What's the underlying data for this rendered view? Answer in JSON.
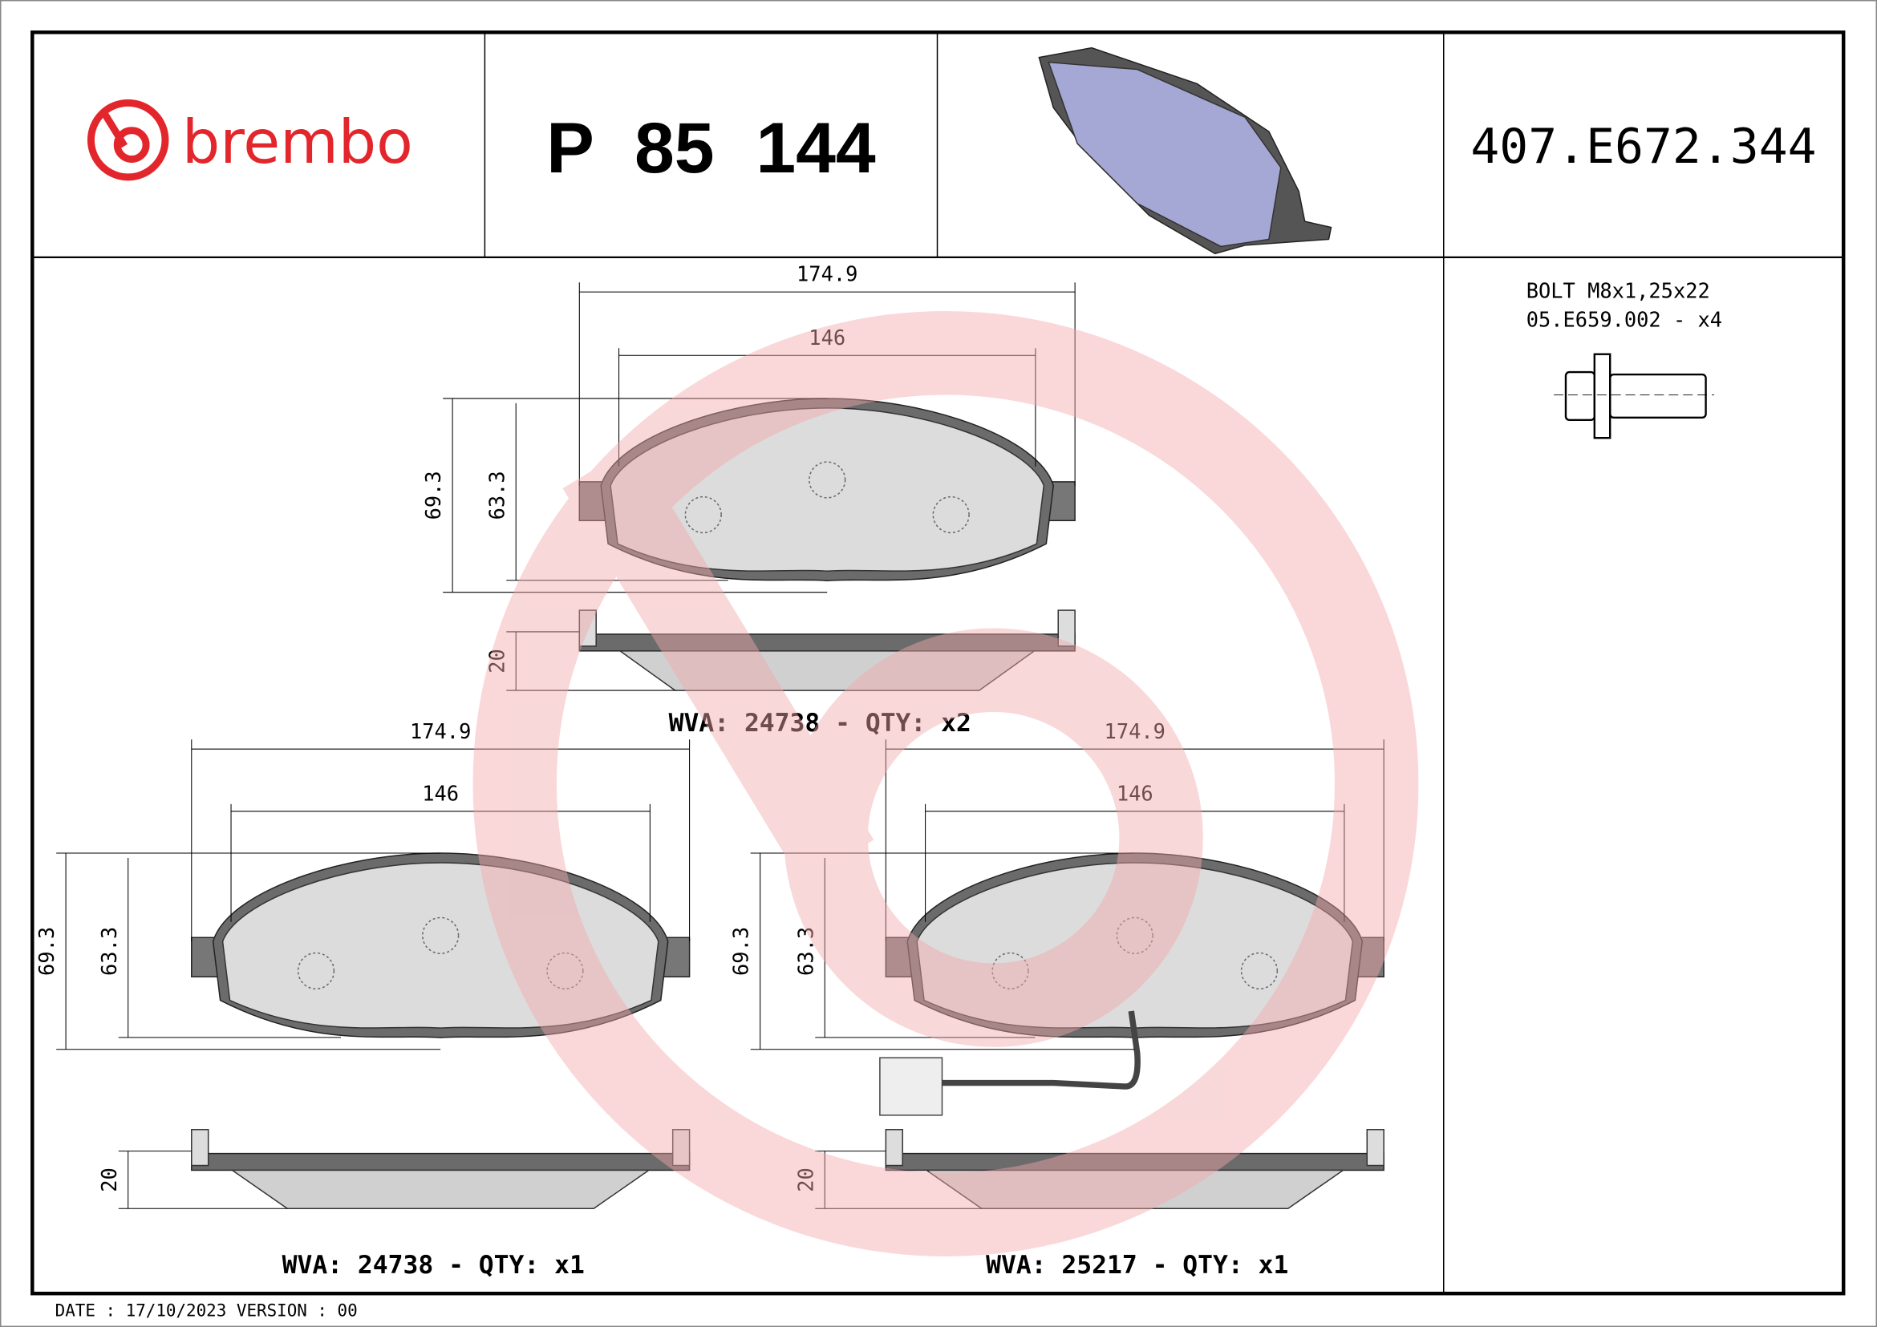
{
  "header": {
    "brand": "brembo",
    "part_number": "P 85 144",
    "reference": "407.E672.344"
  },
  "colors": {
    "brand_red": "#e3262b",
    "watermark": "#f6c9cb",
    "pad_plate": "#6b6b6b",
    "friction": "#dcdcdc",
    "render_blue": "#a5a8d4"
  },
  "bolt": {
    "line1": "BOLT M8x1,25x22",
    "line2": "05.E659.002 - x4"
  },
  "pads": [
    {
      "id": "top",
      "width_outer": "174.9",
      "width_inner": "146",
      "height_outer": "69.3",
      "height_inner": "63.3",
      "thickness": "20",
      "caption": "WVA: 24738 - QTY: x2"
    },
    {
      "id": "bottom-left",
      "width_outer": "174.9",
      "width_inner": "146",
      "height_outer": "69.3",
      "height_inner": "63.3",
      "thickness": "20",
      "caption": "WVA: 24738 - QTY: x1"
    },
    {
      "id": "bottom-right",
      "width_outer": "174.9",
      "width_inner": "146",
      "height_outer": "69.3",
      "height_inner": "63.3",
      "thickness": "20",
      "caption": "WVA: 25217 - QTY: x1",
      "wear_sensor": true
    }
  ],
  "footer": {
    "date_version": "DATE : 17/10/2023 VERSION : 00"
  }
}
